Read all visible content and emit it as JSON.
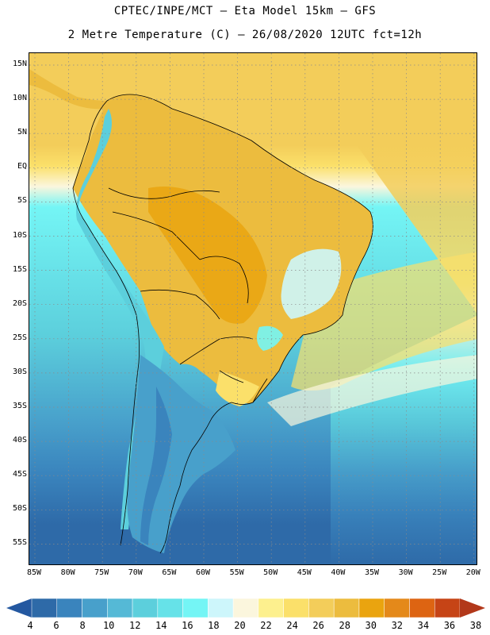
{
  "header": {
    "line1": "CPTEC/INPE/MCT –  Eta Model 15km – GFS",
    "line2": "2 Metre Temperature (C) – 26/08/2020 12UTC fct=12h"
  },
  "axes": {
    "lat_labels": [
      "15N",
      "10N",
      "5N",
      "EQ",
      "5S",
      "10S",
      "15S",
      "20S",
      "25S",
      "30S",
      "35S",
      "40S",
      "45S",
      "50S",
      "55S"
    ],
    "lon_labels": [
      "85W",
      "80W",
      "75W",
      "70W",
      "65W",
      "60W",
      "55W",
      "50W",
      "45W",
      "40W",
      "35W",
      "30W",
      "25W",
      "20W"
    ]
  },
  "colorbar": {
    "labels": [
      "4",
      "6",
      "8",
      "10",
      "12",
      "14",
      "16",
      "18",
      "20",
      "22",
      "24",
      "26",
      "28",
      "30",
      "32",
      "34",
      "36",
      "38"
    ],
    "colors": [
      "#2e6aa8",
      "#3a84bd",
      "#48a0cb",
      "#55b9d6",
      "#5ccfdc",
      "#66e2e8",
      "#74f5f5",
      "#cdf6fb",
      "#fbf6dd",
      "#fdf08e",
      "#fbe06a",
      "#f3cd5a",
      "#ecbc3e",
      "#eaa40f",
      "#e4891a",
      "#dd6412",
      "#c64416"
    ],
    "low_arrow_color": "#2458a0",
    "high_arrow_color": "#b2381a"
  }
}
